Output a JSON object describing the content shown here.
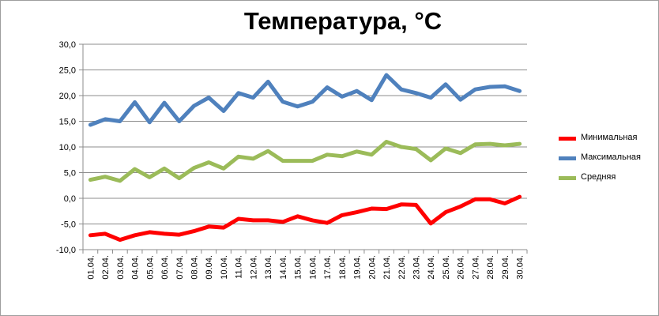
{
  "chart_data": {
    "type": "line",
    "title": "Температура, °C",
    "xlabel": "",
    "ylabel": "",
    "ylim": [
      -10,
      30
    ],
    "yticks": [
      "30,0",
      "25,0",
      "20,0",
      "15,0",
      "10,0",
      "5,0",
      "0,0",
      "-5,0",
      "-10,0"
    ],
    "ytick_values": [
      30,
      25,
      20,
      15,
      10,
      5,
      0,
      -5,
      -10
    ],
    "grid": true,
    "legend_position": "right",
    "categories": [
      "01.04.",
      "02.04.",
      "03.04.",
      "04.04.",
      "05.04.",
      "06.04.",
      "07.04.",
      "08.04.",
      "09.04.",
      "10.04.",
      "11.04.",
      "12.04.",
      "13.04.",
      "14.04.",
      "15.04.",
      "16.04.",
      "17.04.",
      "18.04.",
      "19.04.",
      "20.04.",
      "21.04.",
      "22.04.",
      "23.04.",
      "24.04.",
      "25.04.",
      "26.04.",
      "27.04.",
      "28.04.",
      "29.04.",
      "30.04."
    ],
    "series": [
      {
        "name": "Минимальная",
        "color": "#ff0000",
        "values": [
          -7.2,
          -6.9,
          -8.1,
          -7.2,
          -6.6,
          -6.9,
          -7.1,
          -6.4,
          -5.5,
          -5.7,
          -4.0,
          -4.3,
          -4.3,
          -4.6,
          -3.5,
          -4.3,
          -4.8,
          -3.3,
          -2.7,
          -2.0,
          -2.1,
          -1.2,
          -1.3,
          -4.9,
          -2.7,
          -1.6,
          -0.2,
          -0.2,
          -1.0,
          0.3
        ]
      },
      {
        "name": "Максимальная",
        "color": "#4f81bd",
        "values": [
          14.3,
          15.4,
          15.0,
          18.7,
          14.8,
          18.6,
          15.0,
          18.0,
          19.6,
          17.0,
          20.5,
          19.6,
          22.7,
          18.8,
          17.9,
          18.8,
          21.6,
          19.8,
          20.9,
          19.1,
          24.0,
          21.2,
          20.5,
          19.6,
          22.2,
          19.2,
          21.2,
          21.7,
          21.8,
          20.9
        ]
      },
      {
        "name": "Средняя",
        "color": "#9bbb59",
        "values": [
          3.6,
          4.2,
          3.4,
          5.7,
          4.1,
          5.8,
          3.9,
          5.9,
          7.0,
          5.8,
          8.1,
          7.7,
          9.2,
          7.3,
          7.3,
          7.3,
          8.5,
          8.2,
          9.1,
          8.5,
          11.0,
          10.0,
          9.6,
          7.4,
          9.7,
          8.8,
          10.5,
          10.6,
          10.3,
          10.6
        ]
      }
    ]
  }
}
